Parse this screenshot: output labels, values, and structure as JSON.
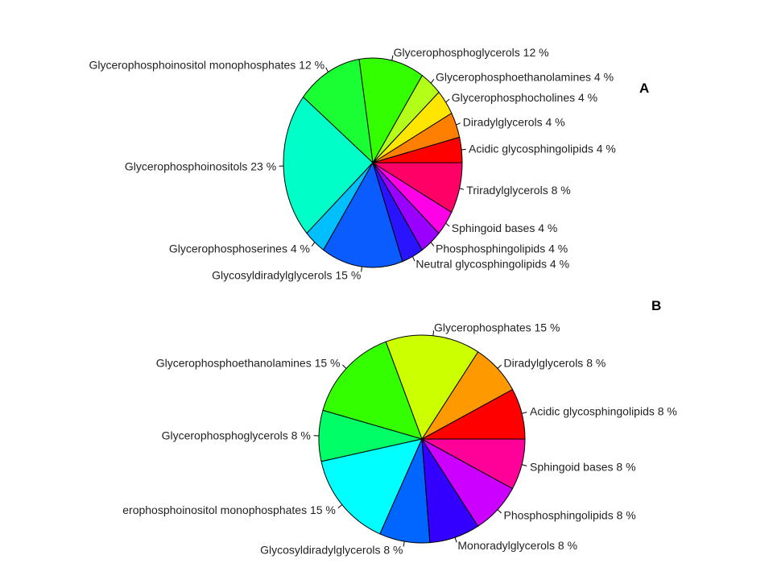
{
  "chart_data": [
    {
      "type": "pie",
      "panel_label": "A",
      "slices": [
        {
          "label": "Acidic glycosphingolipids 4 %",
          "value": 4,
          "color": "#ff0000"
        },
        {
          "label": "Diradylglycerols 4 %",
          "value": 4,
          "color": "#ff8000"
        },
        {
          "label": "Glycerophosphocholines 4 %",
          "value": 4,
          "color": "#ffe600"
        },
        {
          "label": "Glycerophosphoethanolamines 4 %",
          "value": 4,
          "color": "#b3ff1a"
        },
        {
          "label": "Glycerophosphoglycerols 12 %",
          "value": 12,
          "color": "#33ff00"
        },
        {
          "label": "Glycerophosphoinositol monophosphates 12 %",
          "value": 12,
          "color": "#1aff33"
        },
        {
          "label": "Glycerophosphoinositols 23 %",
          "value": 23,
          "color": "#00ffc8"
        },
        {
          "label": "Glycerophosphoserines 4 %",
          "value": 4,
          "color": "#00bfff"
        },
        {
          "label": "Glycosyldiradylglycerols 15 %",
          "value": 15,
          "color": "#0a5cff"
        },
        {
          "label": "Neutral glycosphingolipids 4 %",
          "value": 4,
          "color": "#2a14ff"
        },
        {
          "label": "Phosphosphingolipids 4 %",
          "value": 4,
          "color": "#9900ff"
        },
        {
          "label": "Sphingoid bases 4 %",
          "value": 4,
          "color": "#ff00e6"
        },
        {
          "label": "Triradylglycerols 8 %",
          "value": 8,
          "color": "#ff0066"
        }
      ]
    },
    {
      "type": "pie",
      "panel_label": "B",
      "slices": [
        {
          "label": "Acidic glycosphingolipids 8 %",
          "value": 8,
          "color": "#ff0000"
        },
        {
          "label": "Diradylglycerols 8 %",
          "value": 8,
          "color": "#ff9900"
        },
        {
          "label": "Glycerophosphates 15 %",
          "value": 15,
          "color": "#ccff00"
        },
        {
          "label": "Glycerophosphoethanolamines 15 %",
          "value": 15,
          "color": "#33ff00"
        },
        {
          "label": "Glycerophosphoglycerols 8 %",
          "value": 8,
          "color": "#00ff66"
        },
        {
          "label": "erophosphoinositol monophosphates 15 %",
          "value": 15,
          "color": "#00ffff"
        },
        {
          "label": "Glycosyldiradylglycerols 8 %",
          "value": 8,
          "color": "#0066ff"
        },
        {
          "label": "Monoradylglycerols 8 %",
          "value": 8,
          "color": "#3300ff"
        },
        {
          "label": "Phosphosphingolipids 8 %",
          "value": 8,
          "color": "#cc00ff"
        },
        {
          "label": "Sphingoid bases 8 %",
          "value": 8,
          "color": "#ff0099"
        }
      ]
    }
  ]
}
